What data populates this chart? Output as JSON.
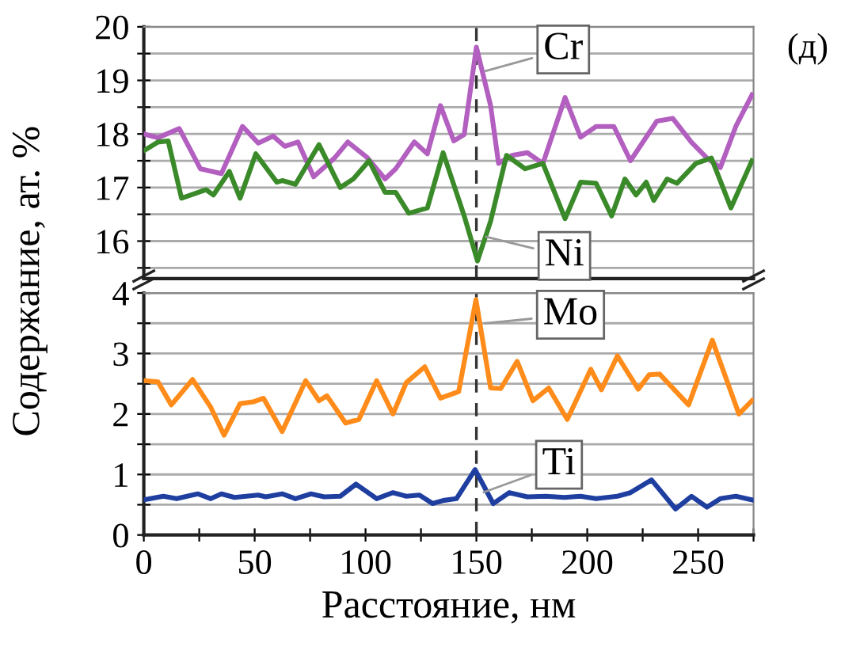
{
  "chart_data": [
    {
      "type": "line",
      "ylabel": "Содержание, ат. %",
      "annotations": [
        "(д)"
      ],
      "xlim": [
        0,
        275
      ],
      "ylim": [
        15.3,
        20
      ],
      "yticks": [
        {
          "value": 15.5,
          "label": null
        },
        16,
        {
          "value": 16.5,
          "label": null
        },
        17,
        {
          "value": 17.5,
          "label": null
        },
        18,
        {
          "value": 18.5,
          "label": null
        },
        19,
        {
          "value": 19.5,
          "label": null
        },
        20
      ],
      "tick_labels": "y",
      "grid": "y",
      "ref_lines": [
        {
          "axis": "x",
          "value": 150,
          "line_style": "dashed",
          "color": "#333333"
        }
      ],
      "series": [
        {
          "name": "Cr",
          "color": "#b25fc0",
          "x": [
            0,
            6.4,
            16,
            25.5,
            35,
            44.5,
            51.6,
            58.3,
            63.6,
            69.5,
            76.6,
            86,
            92,
            100.5,
            108.8,
            113.6,
            122,
            127.9,
            133.8,
            139.8,
            144.5,
            150,
            156.4,
            160,
            166,
            173,
            180,
            190,
            197,
            204,
            212,
            219.5,
            231.4,
            238.6,
            246.9,
            254,
            260,
            267,
            274.3
          ],
          "values": [
            18.0,
            17.93,
            18.1,
            17.35,
            17.26,
            18.14,
            17.83,
            17.96,
            17.77,
            17.85,
            17.2,
            17.55,
            17.85,
            17.57,
            17.16,
            17.35,
            17.85,
            17.63,
            18.53,
            17.87,
            17.99,
            19.62,
            18.53,
            17.45,
            17.6,
            17.65,
            17.45,
            18.68,
            17.94,
            18.14,
            18.14,
            17.5,
            18.24,
            18.29,
            17.85,
            17.55,
            17.37,
            18.14,
            18.73
          ]
        },
        {
          "name": "Ni",
          "color": "#3a8a2a",
          "x": [
            0.5,
            6.4,
            11,
            17,
            28,
            31.4,
            38.6,
            43.4,
            50.5,
            60,
            62.4,
            68.4,
            79,
            88.6,
            94.5,
            101.6,
            108.8,
            113.6,
            119.5,
            127.9,
            135,
            144.5,
            150.5,
            156.4,
            163.6,
            172,
            180,
            190,
            197,
            204,
            211,
            217,
            222,
            226.6,
            230,
            236,
            240.5,
            249,
            256,
            264.8,
            274.3
          ],
          "values": [
            17.7,
            17.85,
            17.87,
            16.8,
            16.96,
            16.86,
            17.3,
            16.8,
            17.63,
            17.1,
            17.13,
            17.06,
            17.8,
            17.0,
            17.16,
            17.5,
            16.91,
            16.91,
            16.52,
            16.62,
            17.65,
            16.47,
            15.63,
            16.37,
            17.6,
            17.35,
            17.45,
            16.42,
            17.1,
            17.08,
            16.47,
            17.16,
            16.86,
            17.1,
            16.76,
            17.16,
            17.08,
            17.45,
            17.55,
            16.62,
            17.5
          ]
        }
      ]
    },
    {
      "type": "line",
      "xlabel": "Расстояние, нм",
      "xlim": [
        0,
        275
      ],
      "ylim": [
        0,
        4
      ],
      "xticks": [
        0,
        {
          "value": 25,
          "label": null
        },
        50,
        {
          "value": 75,
          "label": null
        },
        100,
        {
          "value": 125,
          "label": null
        },
        150,
        {
          "value": 175,
          "label": null
        },
        200,
        {
          "value": 225,
          "label": null
        },
        250,
        {
          "value": 275,
          "label": null
        }
      ],
      "yticks": [
        0,
        {
          "value": 0.5,
          "label": null
        },
        1,
        {
          "value": 1.5,
          "label": null
        },
        2,
        {
          "value": 2.5,
          "label": null
        },
        3,
        {
          "value": 3.5,
          "label": null
        },
        4
      ],
      "grid": "y",
      "ref_lines": [
        {
          "axis": "x",
          "value": 150,
          "line_style": "dashed",
          "color": "#333333"
        }
      ],
      "series": [
        {
          "name": "Mo",
          "color": "#ff8c1a",
          "x": [
            0,
            6.4,
            12.4,
            22,
            30.2,
            36.2,
            43.4,
            49.3,
            54,
            62.4,
            73,
            79,
            82.6,
            91,
            97,
            105,
            112.4,
            118.4,
            126.7,
            133.8,
            142,
            149.8,
            156.4,
            161,
            168.4,
            175.5,
            182.6,
            191,
            201.6,
            206.4,
            213.6,
            223,
            228,
            232.6,
            245.7,
            256.4,
            268.4,
            274.3
          ],
          "values": [
            2.55,
            2.53,
            2.15,
            2.57,
            2.11,
            1.65,
            2.17,
            2.2,
            2.26,
            1.71,
            2.55,
            2.22,
            2.3,
            1.85,
            1.91,
            2.55,
            2.0,
            2.52,
            2.78,
            2.26,
            2.37,
            3.89,
            2.43,
            2.42,
            2.87,
            2.22,
            2.43,
            1.91,
            2.74,
            2.4,
            2.96,
            2.41,
            2.65,
            2.66,
            2.15,
            3.22,
            2.0,
            2.22
          ]
        },
        {
          "name": "Ti",
          "color": "#1f3fa0",
          "x": [
            0,
            8.8,
            14.8,
            24.3,
            30.2,
            35,
            40.9,
            51.6,
            55,
            62.4,
            68.4,
            75.4,
            81.4,
            88.6,
            95.7,
            105,
            112.4,
            118.4,
            124.3,
            130.2,
            135,
            141,
            149.4,
            157.6,
            164.8,
            173,
            181.4,
            189.7,
            196.9,
            204,
            213.6,
            219.5,
            229,
            239.8,
            247,
            254,
            260,
            267,
            274.3
          ],
          "values": [
            0.58,
            0.64,
            0.6,
            0.68,
            0.6,
            0.68,
            0.62,
            0.66,
            0.63,
            0.68,
            0.6,
            0.68,
            0.63,
            0.64,
            0.84,
            0.6,
            0.7,
            0.64,
            0.66,
            0.52,
            0.57,
            0.6,
            1.08,
            0.52,
            0.7,
            0.63,
            0.64,
            0.62,
            0.64,
            0.6,
            0.64,
            0.7,
            0.91,
            0.43,
            0.64,
            0.46,
            0.6,
            0.64,
            0.58
          ]
        }
      ]
    }
  ]
}
